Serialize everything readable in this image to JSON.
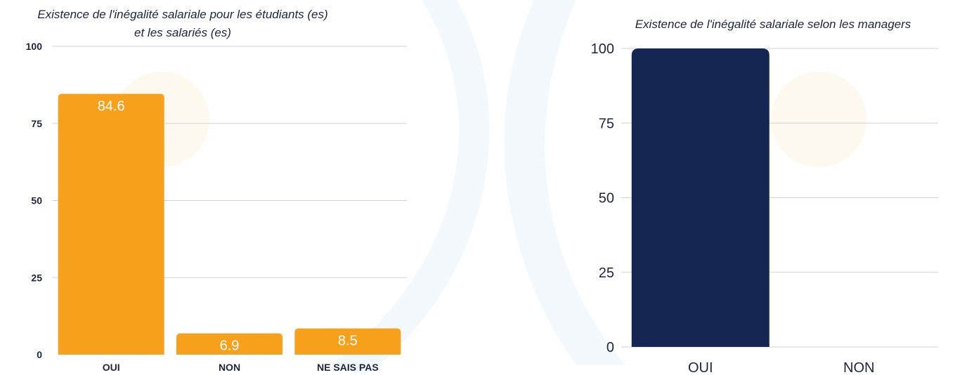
{
  "colors": {
    "bar1": "#f7a01b",
    "bar2": "#152653",
    "grid": "#cfd3dc",
    "text_dark": "#1e2540"
  },
  "chart_data": [
    {
      "type": "bar",
      "title": "Existence de l'inégalité salariale pour les étudiants (es) et les salariés (es)",
      "title_lines": [
        "Existence de l'inégalité salariale pour les étudiants (es)",
        "et les salariés (es)"
      ],
      "categories": [
        "OUI",
        "NON",
        "NE SAIS PAS"
      ],
      "values": [
        84.6,
        6.9,
        8.5
      ],
      "data_labels": [
        "84.6",
        "6.9",
        "8.5"
      ],
      "yticks": [
        0,
        25,
        50,
        75,
        100
      ],
      "ylim": [
        0,
        100
      ],
      "grid": true,
      "legend": "none",
      "color": "#f7a01b"
    },
    {
      "type": "bar",
      "title": "Existence de l'inégalité salariale selon les managers",
      "categories": [
        "OUI",
        "NON"
      ],
      "values": [
        100,
        0
      ],
      "yticks": [
        0,
        25,
        50,
        75,
        100
      ],
      "ylim": [
        0,
        100
      ],
      "grid": true,
      "legend": "none",
      "color": "#152653"
    }
  ]
}
